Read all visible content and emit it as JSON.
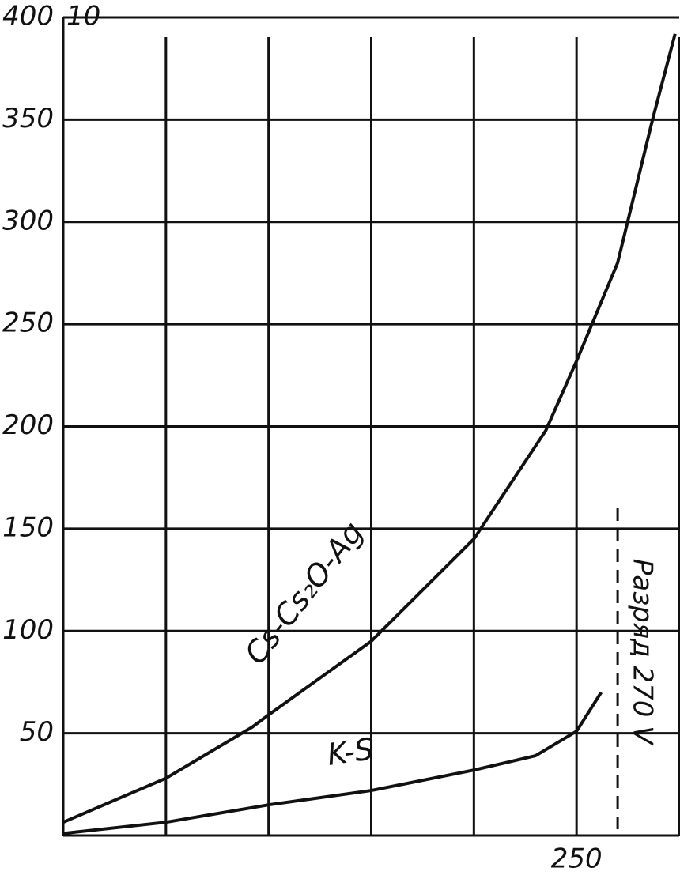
{
  "chart_data": {
    "type": "line",
    "series": [
      {
        "name": "Cs-Cs₂O-Ag",
        "color": "#111111",
        "x": [
          0,
          50,
          92,
          100,
          150,
          200,
          235,
          250,
          270,
          287,
          298
        ],
        "values": [
          6.5,
          28,
          53,
          59,
          95,
          145,
          198,
          232,
          280,
          350,
          392
        ]
      },
      {
        "name": "K-S",
        "color": "#111111",
        "x": [
          0,
          50,
          100,
          150,
          200,
          230,
          250,
          262
        ],
        "values": [
          1,
          6.5,
          15,
          22,
          32,
          39,
          51,
          70
        ]
      }
    ],
    "xlim": [
      0,
      300
    ],
    "xticks": [
      {
        "value": 50,
        "label": null
      },
      {
        "value": 100,
        "label": null
      },
      {
        "value": 150,
        "label": null
      },
      {
        "value": 200,
        "label": null
      },
      250,
      {
        "value": 300,
        "label": null
      }
    ],
    "ylim": [
      0,
      400
    ],
    "yticks": [
      50,
      100,
      150,
      200,
      250,
      300,
      350,
      400
    ],
    "grid": true,
    "annotations": [
      "10"
    ],
    "vline": {
      "x": 270,
      "label": "Разряд 270 V"
    }
  }
}
